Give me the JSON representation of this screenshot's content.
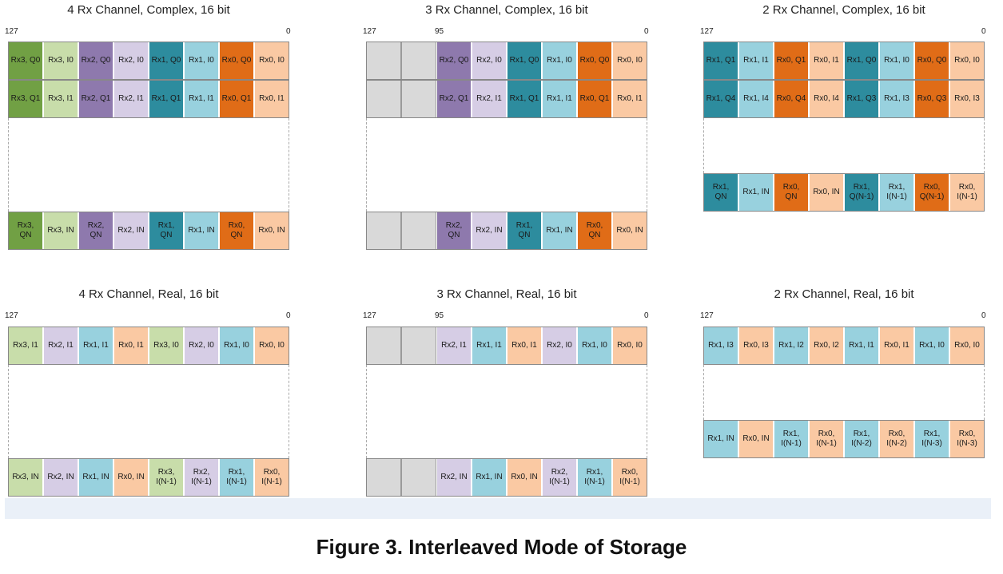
{
  "colors": {
    "rx3q": "#71a044",
    "rx3i": "#c8ddaa",
    "rx2q": "#8e79ad",
    "rx2i": "#d6cde5",
    "rx1q": "#2d8c9e",
    "rx1i": "#98d1de",
    "rx0q": "#e06c17",
    "rx0i": "#fac9a3",
    "empty": "#d9d9d9"
  },
  "caption": "Figure 3. Interleaved Mode of Storage",
  "panels": [
    {
      "title": "4 Rx Channel, Complex, 16 bit",
      "msb": "127",
      "lsb": "0",
      "mid": "",
      "rows": [
        [
          [
            "Rx3, Q0",
            "rx3q"
          ],
          [
            "Rx3, I0",
            "rx3i"
          ],
          [
            "Rx2, Q0",
            "rx2q"
          ],
          [
            "Rx2, I0",
            "rx2i"
          ],
          [
            "Rx1, Q0",
            "rx1q"
          ],
          [
            "Rx1, I0",
            "rx1i"
          ],
          [
            "Rx0, Q0",
            "rx0q"
          ],
          [
            "Rx0, I0",
            "rx0i"
          ]
        ],
        [
          [
            "Rx3, Q1",
            "rx3q"
          ],
          [
            "Rx3, I1",
            "rx3i"
          ],
          [
            "Rx2, Q1",
            "rx2q"
          ],
          [
            "Rx2, I1",
            "rx2i"
          ],
          [
            "Rx1, Q1",
            "rx1q"
          ],
          [
            "Rx1, I1",
            "rx1i"
          ],
          [
            "Rx0, Q1",
            "rx0q"
          ],
          [
            "Rx0, I1",
            "rx0i"
          ]
        ],
        [
          [
            "Rx3,\nQN",
            "rx3q"
          ],
          [
            "Rx3, IN",
            "rx3i"
          ],
          [
            "Rx2,\nQN",
            "rx2q"
          ],
          [
            "Rx2, IN",
            "rx2i"
          ],
          [
            "Rx1,\nQN",
            "rx1q"
          ],
          [
            "Rx1, IN",
            "rx1i"
          ],
          [
            "Rx0,\nQN",
            "rx0q"
          ],
          [
            "Rx0, IN",
            "rx0i"
          ]
        ]
      ]
    },
    {
      "title": "3 Rx Channel, Complex, 16 bit",
      "msb": "127",
      "lsb": "0",
      "mid": "95",
      "rows": [
        [
          [
            "",
            "empty"
          ],
          [
            "",
            "empty"
          ],
          [
            "Rx2, Q0",
            "rx2q"
          ],
          [
            "Rx2, I0",
            "rx2i"
          ],
          [
            "Rx1, Q0",
            "rx1q"
          ],
          [
            "Rx1, I0",
            "rx1i"
          ],
          [
            "Rx0, Q0",
            "rx0q"
          ],
          [
            "Rx0, I0",
            "rx0i"
          ]
        ],
        [
          [
            "",
            "empty"
          ],
          [
            "",
            "empty"
          ],
          [
            "Rx2, Q1",
            "rx2q"
          ],
          [
            "Rx2, I1",
            "rx2i"
          ],
          [
            "Rx1, Q1",
            "rx1q"
          ],
          [
            "Rx1, I1",
            "rx1i"
          ],
          [
            "Rx0, Q1",
            "rx0q"
          ],
          [
            "Rx0, I1",
            "rx0i"
          ]
        ],
        [
          [
            "",
            "empty"
          ],
          [
            "",
            "empty"
          ],
          [
            "Rx2,\nQN",
            "rx2q"
          ],
          [
            "Rx2, IN",
            "rx2i"
          ],
          [
            "Rx1,\nQN",
            "rx1q"
          ],
          [
            "Rx1, IN",
            "rx1i"
          ],
          [
            "Rx0,\nQN",
            "rx0q"
          ],
          [
            "Rx0, IN",
            "rx0i"
          ]
        ]
      ]
    },
    {
      "title": "2 Rx Channel, Complex, 16 bit",
      "msb": "127",
      "lsb": "0",
      "mid": "",
      "rows": [
        [
          [
            "Rx1, Q1",
            "rx1q"
          ],
          [
            "Rx1, I1",
            "rx1i"
          ],
          [
            "Rx0, Q1",
            "rx0q"
          ],
          [
            "Rx0, I1",
            "rx0i"
          ],
          [
            "Rx1, Q0",
            "rx1q"
          ],
          [
            "Rx1, I0",
            "rx1i"
          ],
          [
            "Rx0, Q0",
            "rx0q"
          ],
          [
            "Rx0, I0",
            "rx0i"
          ]
        ],
        [
          [
            "Rx1, Q4",
            "rx1q"
          ],
          [
            "Rx1, I4",
            "rx1i"
          ],
          [
            "Rx0, Q4",
            "rx0q"
          ],
          [
            "Rx0, I4",
            "rx0i"
          ],
          [
            "Rx1, Q3",
            "rx1q"
          ],
          [
            "Rx1, I3",
            "rx1i"
          ],
          [
            "Rx0, Q3",
            "rx0q"
          ],
          [
            "Rx0, I3",
            "rx0i"
          ]
        ],
        [
          [
            "Rx1,\nQN",
            "rx1q"
          ],
          [
            "Rx1, IN",
            "rx1i"
          ],
          [
            "Rx0,\nQN",
            "rx0q"
          ],
          [
            "Rx0, IN",
            "rx0i"
          ],
          [
            "Rx1,\nQ(N-1)",
            "rx1q"
          ],
          [
            "Rx1,\nI(N-1)",
            "rx1i"
          ],
          [
            "Rx0,\nQ(N-1)",
            "rx0q"
          ],
          [
            "Rx0,\nI(N-1)",
            "rx0i"
          ]
        ]
      ]
    },
    {
      "title": "4 Rx Channel, Real, 16 bit",
      "msb": "127",
      "lsb": "0",
      "mid": "",
      "rows": [
        [
          [
            "Rx3, I1",
            "rx3i"
          ],
          [
            "Rx2, I1",
            "rx2i"
          ],
          [
            "Rx1, I1",
            "rx1i"
          ],
          [
            "Rx0, I1",
            "rx0i"
          ],
          [
            "Rx3, I0",
            "rx3i"
          ],
          [
            "Rx2, I0",
            "rx2i"
          ],
          [
            "Rx1, I0",
            "rx1i"
          ],
          [
            "Rx0, I0",
            "rx0i"
          ]
        ],
        [
          [
            "Rx3, IN",
            "rx3i"
          ],
          [
            "Rx2, IN",
            "rx2i"
          ],
          [
            "Rx1, IN",
            "rx1i"
          ],
          [
            "Rx0, IN",
            "rx0i"
          ],
          [
            "Rx3,\nI(N-1)",
            "rx3i"
          ],
          [
            "Rx2,\nI(N-1)",
            "rx2i"
          ],
          [
            "Rx1,\nI(N-1)",
            "rx1i"
          ],
          [
            "Rx0,\nI(N-1)",
            "rx0i"
          ]
        ]
      ]
    },
    {
      "title": "3 Rx Channel, Real, 16 bit",
      "msb": "127",
      "lsb": "0",
      "mid": "95",
      "rows": [
        [
          [
            "",
            "empty"
          ],
          [
            "",
            "empty"
          ],
          [
            "Rx2, I1",
            "rx2i"
          ],
          [
            "Rx1, I1",
            "rx1i"
          ],
          [
            "Rx0, I1",
            "rx0i"
          ],
          [
            "Rx2, I0",
            "rx2i"
          ],
          [
            "Rx1, I0",
            "rx1i"
          ],
          [
            "Rx0, I0",
            "rx0i"
          ]
        ],
        [
          [
            "",
            "empty"
          ],
          [
            "",
            "empty"
          ],
          [
            "Rx2, IN",
            "rx2i"
          ],
          [
            "Rx1, IN",
            "rx1i"
          ],
          [
            "Rx0, IN",
            "rx0i"
          ],
          [
            "Rx2,\nI(N-1)",
            "rx2i"
          ],
          [
            "Rx1,\nI(N-1)",
            "rx1i"
          ],
          [
            "Rx0,\nI(N-1)",
            "rx0i"
          ]
        ]
      ]
    },
    {
      "title": "2 Rx Channel, Real, 16 bit",
      "msb": "127",
      "lsb": "0",
      "mid": "",
      "rows": [
        [
          [
            "Rx1, I3",
            "rx1i"
          ],
          [
            "Rx0, I3",
            "rx0i"
          ],
          [
            "Rx1, I2",
            "rx1i"
          ],
          [
            "Rx0, I2",
            "rx0i"
          ],
          [
            "Rx1, I1",
            "rx1i"
          ],
          [
            "Rx0, I1",
            "rx0i"
          ],
          [
            "Rx1, I0",
            "rx1i"
          ],
          [
            "Rx0, I0",
            "rx0i"
          ]
        ],
        [
          [
            "Rx1, IN",
            "rx1i"
          ],
          [
            "Rx0, IN",
            "rx0i"
          ],
          [
            "Rx1,\nI(N-1)",
            "rx1i"
          ],
          [
            "Rx0,\nI(N-1)",
            "rx0i"
          ],
          [
            "Rx1,\nI(N-2)",
            "rx1i"
          ],
          [
            "Rx0,\nI(N-2)",
            "rx0i"
          ],
          [
            "Rx1,\nI(N-3)",
            "rx1i"
          ],
          [
            "Rx0,\nI(N-3)",
            "rx0i"
          ]
        ]
      ]
    }
  ]
}
